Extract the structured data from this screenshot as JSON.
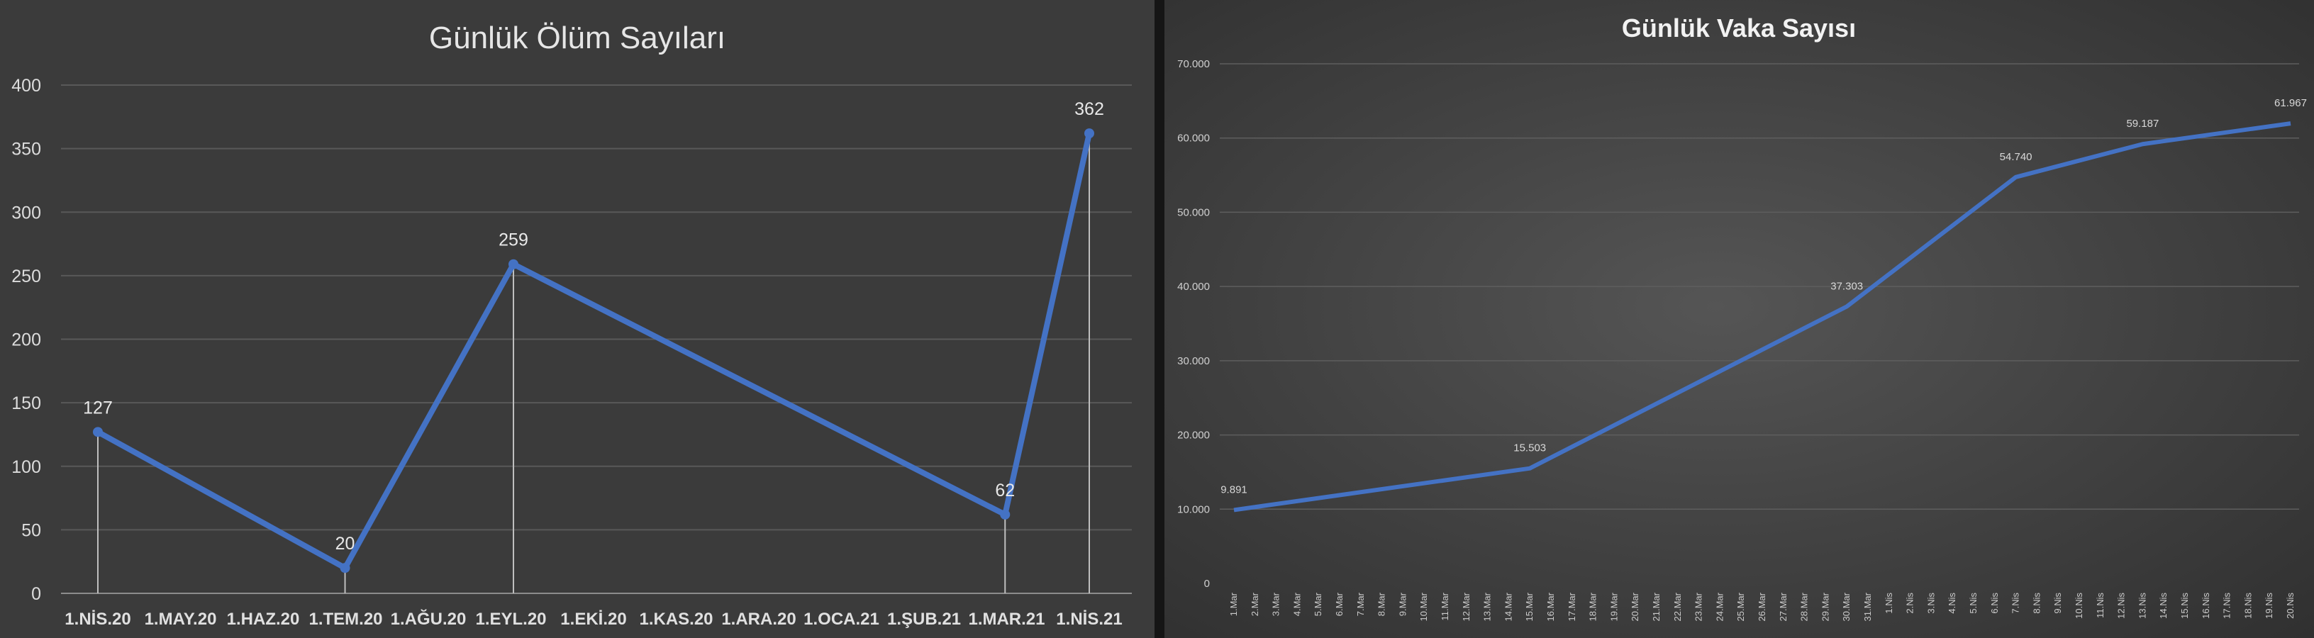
{
  "charts": [
    {
      "type": "line",
      "title": "Günlük Ölüm Sayıları",
      "categories": [
        "1.NİS.20",
        "1.MAY.20",
        "1.HAZ.20",
        "1.TEM.20",
        "1.AĞU.20",
        "1.EYL.20",
        "1.EKİ.20",
        "1.KAS.20",
        "1.ARA.20",
        "1.OCA.21",
        "1.ŞUB.21",
        "1.MAR.21",
        "1.NİS.21"
      ],
      "x": [
        "2020-04-01",
        "2020-07-01",
        "2020-09-01",
        "2021-03-01",
        "2021-04-01"
      ],
      "values": [
        127,
        20,
        259,
        62,
        362
      ],
      "data_labels": [
        "127",
        "20",
        "259",
        "62",
        "362"
      ],
      "y_ticks": [
        "0",
        "50",
        "100",
        "150",
        "200",
        "250",
        "300",
        "350",
        "400"
      ],
      "ylim": [
        0,
        400
      ],
      "grid": true,
      "drop_lines": true,
      "color": "#4472C4"
    },
    {
      "type": "line",
      "title": "Günlük Vaka Sayısı",
      "categories": [
        "1.Mar",
        "2.Mar",
        "3.Mar",
        "4.Mar",
        "5.Mar",
        "6.Mar",
        "7.Mar",
        "8.Mar",
        "9.Mar",
        "10.Mar",
        "11.Mar",
        "12.Mar",
        "13.Mar",
        "14.Mar",
        "15.Mar",
        "16.Mar",
        "17.Mar",
        "18.Mar",
        "19.Mar",
        "20.Mar",
        "21.Mar",
        "22.Mar",
        "23.Mar",
        "24.Mar",
        "25.Mar",
        "26.Mar",
        "27.Mar",
        "28.Mar",
        "29.Mar",
        "30.Mar",
        "31.Mar",
        "1.Nis",
        "2.Nis",
        "3.Nis",
        "4.Nis",
        "5.Nis",
        "6.Nis",
        "7.Nis",
        "8.Nis",
        "9.Nis",
        "10.Nis",
        "11.Nis",
        "12.Nis",
        "13.Nis",
        "14.Nis",
        "15.Nis",
        "16.Nis",
        "17.Nis",
        "18.Nis",
        "19.Nis",
        "20.Nis"
      ],
      "x": [
        "1.Mar",
        "15.Mar",
        "30.Mar",
        "7.Nis",
        "13.Nis",
        "20.Nis"
      ],
      "values": [
        9891,
        15503,
        37303,
        54740,
        59187,
        61967
      ],
      "data_labels": [
        "9.891",
        "15.503",
        "37.303",
        "54.740",
        "59.187",
        "61.967"
      ],
      "y_ticks": [
        "0",
        "10.000",
        "20.000",
        "30.000",
        "40.000",
        "50.000",
        "60.000",
        "70.000"
      ],
      "ylim": [
        0,
        70000
      ],
      "grid": true,
      "color": "#4472C4"
    }
  ]
}
